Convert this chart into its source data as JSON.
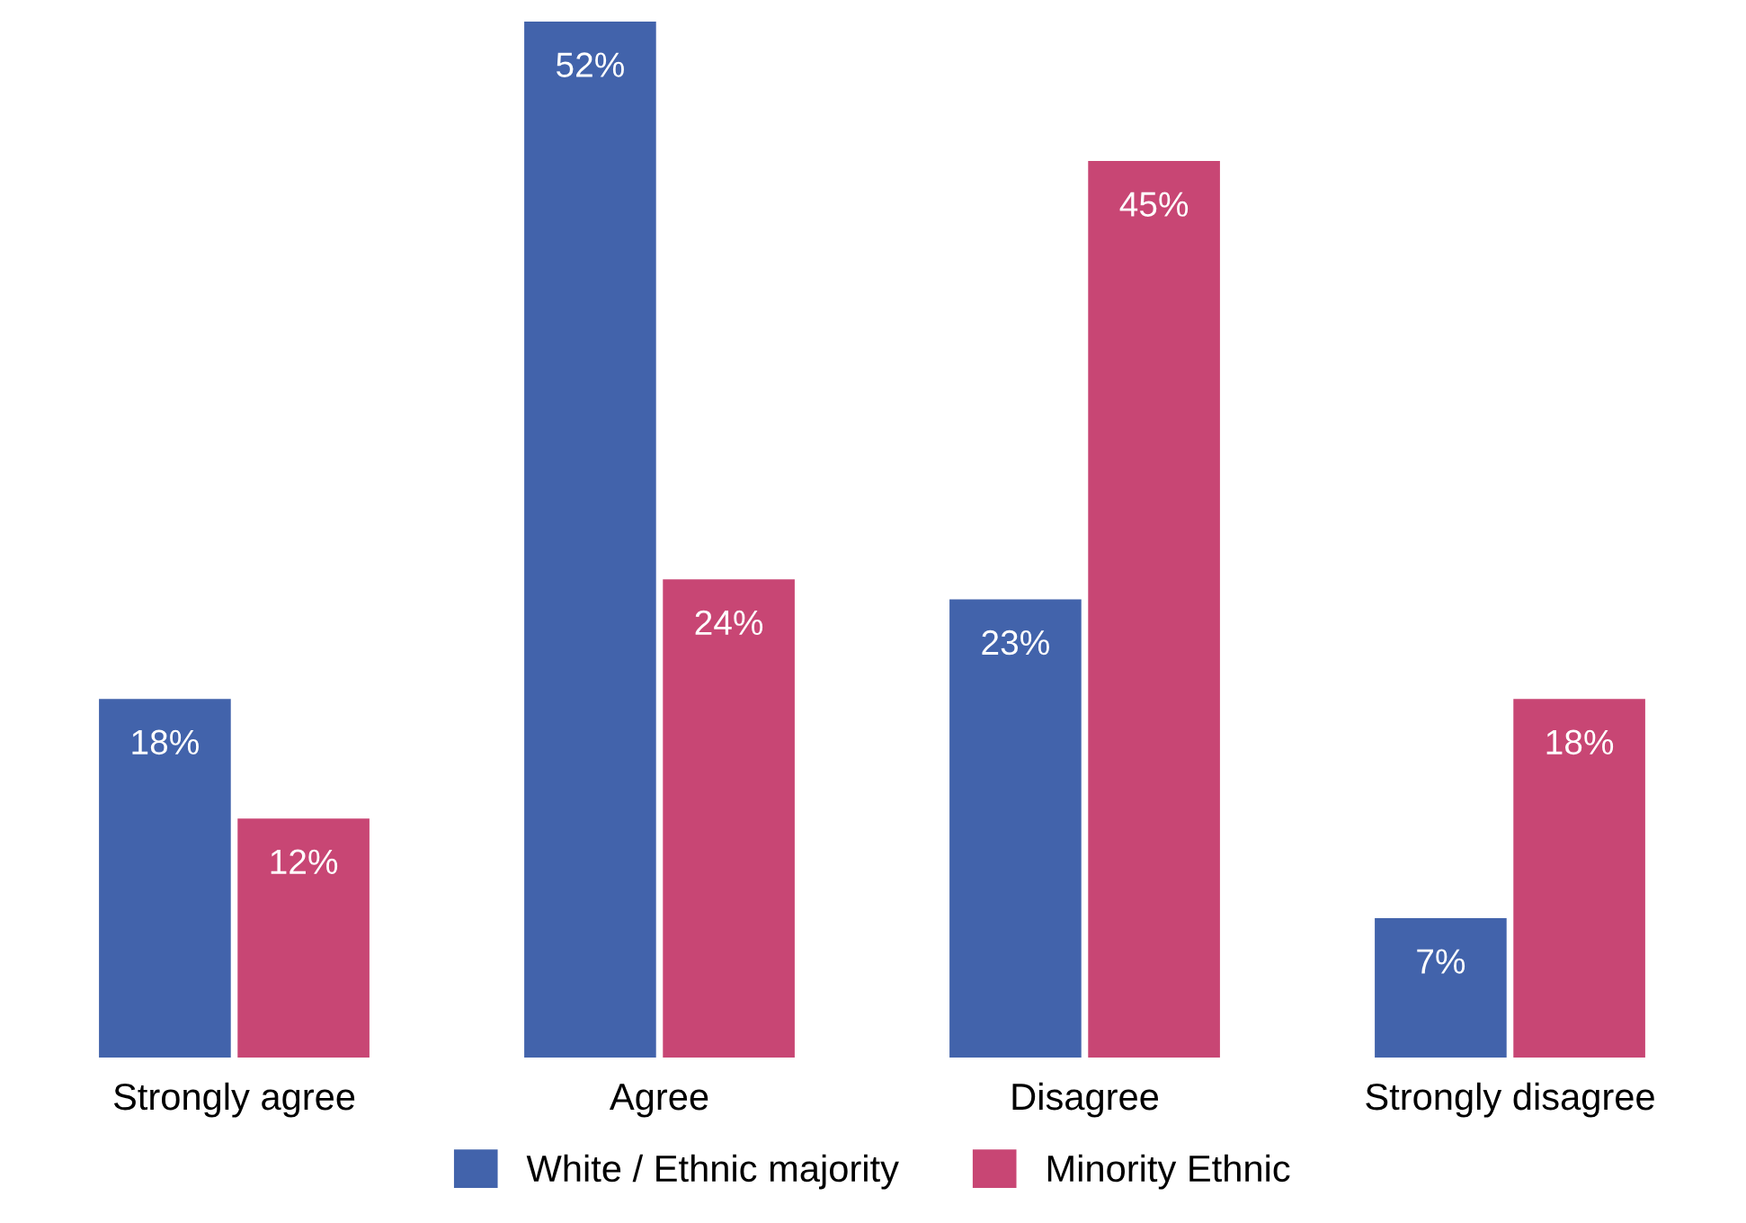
{
  "chart_data": {
    "type": "bar",
    "categories": [
      "Strongly agree",
      "Agree",
      "Disagree",
      "Strongly disagree"
    ],
    "series": [
      {
        "name": "White / Ethnic majority",
        "color": "#4263ab",
        "values": [
          18,
          52,
          23,
          7
        ],
        "value_labels": [
          "18%",
          "52%",
          "23%",
          "7%"
        ]
      },
      {
        "name": "Minority Ethnic",
        "color": "#c84674",
        "values": [
          12,
          24,
          45,
          18
        ],
        "value_labels": [
          "12%",
          "24%",
          "45%",
          "18%"
        ]
      }
    ],
    "legend": "bottom",
    "grid": false
  }
}
